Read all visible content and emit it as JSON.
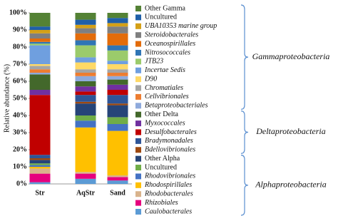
{
  "chart_data": {
    "type": "stacked_bar",
    "y_label": "Relative abundance (%)",
    "categories": [
      "Str",
      "AqStr",
      "Sand"
    ],
    "ylim": [
      0,
      100
    ],
    "yticks": [
      {
        "value": 0,
        "label": "0%"
      },
      {
        "value": 10,
        "label": "10%"
      },
      {
        "value": 20,
        "label": "20%"
      },
      {
        "value": 30,
        "label": "30%"
      },
      {
        "value": 40,
        "label": "40%"
      },
      {
        "value": 50,
        "label": "50%"
      },
      {
        "value": 60,
        "label": "60%"
      },
      {
        "value": 70,
        "label": "70%"
      },
      {
        "value": 80,
        "label": "80%"
      },
      {
        "value": 90,
        "label": "90%"
      },
      {
        "value": 100,
        "label": "100%"
      }
    ],
    "series": [
      {
        "name": "Caulobacterales",
        "color": "#5b9bd5",
        "italic": true,
        "group": "Alphaproteobacteria",
        "values": [
          1,
          3,
          2
        ]
      },
      {
        "name": "Rhizobiales",
        "color": "#e6007e",
        "italic": true,
        "group": "Alphaproteobacteria",
        "values": [
          5,
          3,
          2
        ]
      },
      {
        "name": "Rhodobacterales",
        "color": "#d9b38c",
        "italic": true,
        "group": "Alphaproteobacteria",
        "values": [
          3,
          1,
          1
        ]
      },
      {
        "name": "Rhodospirillales",
        "color": "#ffc000",
        "italic": true,
        "group": "Alphaproteobacteria",
        "values": [
          1,
          26,
          26
        ]
      },
      {
        "name": "Rhodovibrionales",
        "color": "#4472c4",
        "italic": true,
        "group": "Alphaproteobacteria",
        "values": [
          1,
          4,
          4
        ]
      },
      {
        "name": "Uncultured",
        "color": "#70ad47",
        "italic": false,
        "group": "Alphaproteobacteria",
        "values": [
          1,
          3,
          4
        ]
      },
      {
        "name": "Other Alpha",
        "color": "#264478",
        "italic": false,
        "group": "Alphaproteobacteria",
        "values": [
          2,
          7,
          7
        ]
      },
      {
        "name": "Bdellovibrionales",
        "color": "#9e480e",
        "italic": true,
        "group": "Deltaproteobacteria",
        "values": [
          1,
          1,
          1
        ]
      },
      {
        "name": "Bradymonadales",
        "color": "#2e5597",
        "italic": true,
        "group": "Deltaproteobacteria",
        "values": [
          2,
          4,
          5
        ]
      },
      {
        "name": "Desulfobacterales",
        "color": "#c00000",
        "italic": true,
        "group": "Deltaproteobacteria",
        "values": [
          35,
          2,
          3
        ]
      },
      {
        "name": "Myxococcales",
        "color": "#7030a0",
        "italic": true,
        "group": "Deltaproteobacteria",
        "values": [
          3,
          3,
          3
        ]
      },
      {
        "name": "Other Delta",
        "color": "#43682b",
        "italic": false,
        "group": "Deltaproteobacteria",
        "values": [
          9,
          3,
          3
        ]
      },
      {
        "name": "Betaproteobacteriales",
        "color": "#8faadc",
        "italic": true,
        "group": "Gammaproteobacteria",
        "values": [
          1,
          3,
          2
        ]
      },
      {
        "name": "Cellvibrionales",
        "color": "#ed7d31",
        "italic": true,
        "group": "Gammaproteobacteria",
        "values": [
          2,
          2,
          2
        ]
      },
      {
        "name": "Chromatiales",
        "color": "#a5a5a5",
        "italic": true,
        "group": "Gammaproteobacteria",
        "values": [
          2,
          2,
          2
        ]
      },
      {
        "name": "D90",
        "color": "#ffd966",
        "italic": true,
        "group": "Gammaproteobacteria",
        "values": [
          1,
          4,
          3
        ]
      },
      {
        "name": "Incertae Sedis",
        "color": "#6f9fdf",
        "italic": true,
        "group": "Gammaproteobacteria",
        "values": [
          11,
          3,
          2
        ]
      },
      {
        "name": "JTB23",
        "color": "#9bcb6b",
        "italic": true,
        "group": "Gammaproteobacteria",
        "values": [
          1,
          7,
          6
        ]
      },
      {
        "name": "Nitrosococcales",
        "color": "#2f75b5",
        "italic": true,
        "group": "Gammaproteobacteria",
        "values": [
          1,
          3,
          3
        ]
      },
      {
        "name": "Oceanospirillales",
        "color": "#e36c0a",
        "italic": true,
        "group": "Gammaproteobacteria",
        "values": [
          2,
          4,
          7
        ]
      },
      {
        "name": "Steroidobacterales",
        "color": "#7f7f7f",
        "italic": true,
        "group": "Gammaproteobacteria",
        "values": [
          3,
          3,
          4
        ]
      },
      {
        "name": "UBA10353 marine group",
        "color": "#d4a017",
        "italic": true,
        "group": "Gammaproteobacteria",
        "values": [
          2,
          2,
          2
        ]
      },
      {
        "name": "Uncultured",
        "color": "#1f5fa8",
        "italic": false,
        "group": "Gammaproteobacteria",
        "values": [
          2,
          3,
          3
        ]
      },
      {
        "name": "Other Gamma",
        "color": "#548235",
        "italic": false,
        "group": "Gammaproteobacteria",
        "values": [
          8,
          4,
          3
        ]
      }
    ]
  }
}
